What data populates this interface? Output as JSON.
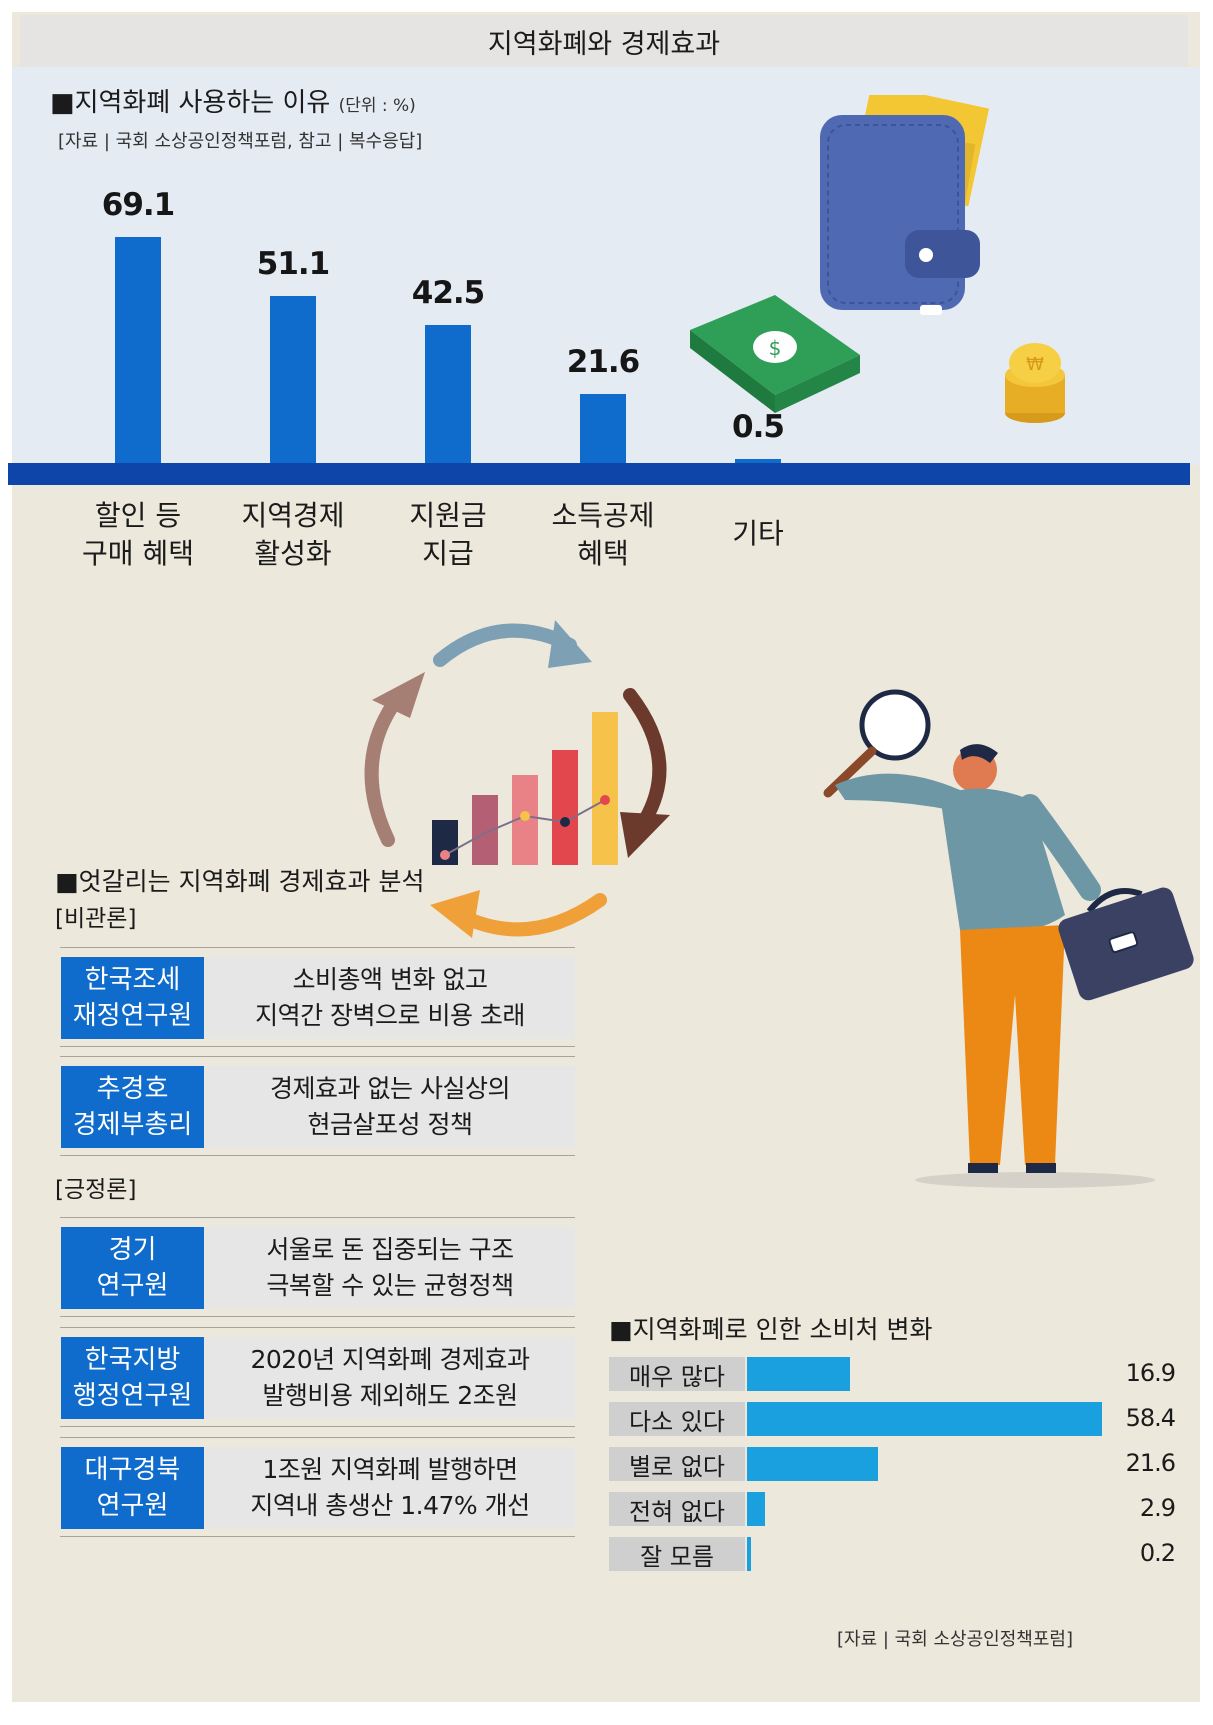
{
  "page_title": "지역화폐와 경제효과",
  "section1": {
    "title": "■지역화폐 사용하는 이유",
    "unit": "(단위 : %)",
    "source": "[자료 | 국회 소상공인정책포럼, 참고 | 복수응답]"
  },
  "chart_data": [
    {
      "type": "bar",
      "title": "■지역화폐 사용하는 이유",
      "unit": "(단위 : %)",
      "categories": [
        [
          "할인 등",
          "구매 혜택"
        ],
        [
          "지역경제",
          "활성화"
        ],
        [
          "지원금",
          "지급"
        ],
        [
          "소득공제",
          "혜택"
        ],
        [
          "기타"
        ]
      ],
      "values": [
        69.1,
        51.1,
        42.5,
        21.6,
        0.5
      ],
      "value_labels": [
        "69.1",
        "51.1",
        "42.5",
        "21.6",
        "0.5"
      ],
      "ylim": [
        0,
        75
      ],
      "color": "#0f6ccc",
      "grid": false
    },
    {
      "type": "bar",
      "orientation": "horizontal",
      "title": "■지역화폐로 인한 소비처 변화",
      "categories": [
        "매우 많다",
        "다소 있다",
        "별로 없다",
        "전혀 없다",
        "잘 모름"
      ],
      "values": [
        16.9,
        58.4,
        21.6,
        2.9,
        0.2
      ],
      "value_labels": [
        "16.9",
        "58.4",
        "21.6",
        "2.9",
        "0.2"
      ],
      "xlim": [
        0,
        58.4
      ],
      "color": "#1aa0df",
      "grid": false
    }
  ],
  "section2": {
    "title": "■엇갈리는 지역화폐 경제효과 분석",
    "pessimistic_label": "[비관론]",
    "optimistic_label": "[긍정론]",
    "pessimistic": [
      {
        "org": [
          "한국조세",
          "재정연구원"
        ],
        "desc": [
          "소비총액 변화 없고",
          "지역간 장벽으로 비용 초래"
        ]
      },
      {
        "org": [
          "추경호",
          "경제부총리"
        ],
        "desc": [
          "경제효과 없는 사실상의",
          "현금살포성 정책"
        ]
      }
    ],
    "optimistic": [
      {
        "org": [
          "경기",
          "연구원"
        ],
        "desc": [
          "서울로 돈 집중되는 구조",
          "극복할 수 있는 균형정책"
        ]
      },
      {
        "org": [
          "한국지방",
          "행정연구원"
        ],
        "desc": [
          "2020년 지역화폐 경제효과",
          "발행비용 제외해도 2조원"
        ]
      },
      {
        "org": [
          "대구경북",
          "연구원"
        ],
        "desc": [
          "1조원 지역화폐 발행하면",
          "지역내 총생산 1.47% 개선"
        ]
      }
    ]
  },
  "section3": {
    "title": "■지역화폐로 인한 소비처 변화",
    "source": "[자료 | 국회 소상공인정책포럼]"
  },
  "colors": {
    "accent_blue": "#0f6ccc",
    "baseline_blue": "#0d45a8",
    "hbar_blue": "#1aa0df",
    "background": "#ede8dc",
    "top_panel": "#e5ebf3"
  },
  "illustrations": [
    "wallet-icon",
    "cash-bundle-icon",
    "coin-stack-icon",
    "cycle-arrows-icon",
    "growth-chart-icon",
    "man-with-magnifier-icon"
  ]
}
